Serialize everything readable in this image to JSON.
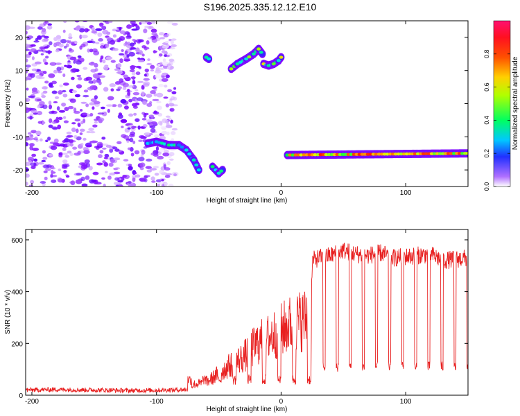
{
  "title": "S196.2025.335.12.12.E10",
  "chart_data": [
    {
      "type": "heatmap",
      "xlabel": "Height of straight line (km)",
      "ylabel": "Frequency (Hz)",
      "xlim": [
        -205,
        150
      ],
      "ylim": [
        -25,
        25
      ],
      "xticks": [
        -200,
        -100,
        0,
        100
      ],
      "yticks": [
        -20,
        -10,
        0,
        10,
        20
      ],
      "colorbar": {
        "label": "Normalized spectral amplitude",
        "range": [
          0,
          1
        ],
        "ticks": [
          0.0,
          0.2,
          0.4,
          0.6,
          0.8
        ],
        "tick_labels": [
          "0.0",
          "0.2",
          "0.4",
          "0.6",
          "0.8"
        ],
        "colors": [
          "#ffffff",
          "#7a00ff",
          "#2030ff",
          "#00e0ff",
          "#00ff40",
          "#e0ff00",
          "#ffa000",
          "#ff2000",
          "#ff1060"
        ]
      },
      "features": [
        {
          "name": "noise-region",
          "x": [
            -205,
            -85
          ],
          "y": [
            -25,
            25
          ],
          "amplitude": 0.1
        },
        {
          "name": "chirp-low-segment",
          "points": [
            [
              -107,
              -12
            ],
            [
              -100,
              -11.5
            ],
            [
              -90,
              -12.5
            ],
            [
              -82,
              -12.5
            ],
            [
              -76,
              -14
            ],
            [
              -70,
              -17
            ],
            [
              -66,
              -20
            ]
          ],
          "amplitude": 0.5
        },
        {
          "name": "burst-high-1",
          "points": [
            [
              -60,
              14
            ],
            [
              -58,
              13.5
            ]
          ],
          "amplitude": 0.6
        },
        {
          "name": "burst-low-2",
          "points": [
            [
              -55,
              -19
            ],
            [
              -50,
              -21
            ],
            [
              -47,
              -20
            ]
          ],
          "amplitude": 0.5
        },
        {
          "name": "chirp-high-segment",
          "points": [
            [
              -40,
              10.5
            ],
            [
              -35,
              12
            ],
            [
              -28,
              13.5
            ],
            [
              -22,
              15
            ],
            [
              -18,
              16.5
            ],
            [
              -15,
              15
            ]
          ],
          "amplitude": 0.6
        },
        {
          "name": "burst-high-3",
          "points": [
            [
              -14,
              12
            ],
            [
              -10,
              11.5
            ],
            [
              -6,
              12
            ],
            [
              -2,
              13
            ],
            [
              0,
              14
            ]
          ],
          "amplitude": 0.7
        },
        {
          "name": "steady-tone",
          "points": [
            [
              5,
              -15.5
            ],
            [
              150,
              -15
            ]
          ],
          "amplitude": 0.9
        }
      ]
    },
    {
      "type": "line",
      "xlabel": "Height of straight line (km)",
      "ylabel": "SNR (10 * v/v)",
      "xlim": [
        -205,
        150
      ],
      "ylim": [
        0,
        640
      ],
      "xticks": [
        -200,
        -100,
        0,
        100
      ],
      "yticks": [
        0,
        200,
        400,
        600
      ],
      "color": "#ff2020",
      "series": [
        {
          "name": "SNR",
          "x": [
            -205,
            -180,
            -150,
            -120,
            -90,
            -75,
            -70,
            -60,
            -50,
            -40,
            -30,
            -20,
            -10,
            0,
            10,
            20,
            25,
            30,
            40,
            50,
            60,
            70,
            80,
            90,
            100,
            110,
            120,
            130,
            140,
            150
          ],
          "values": [
            20,
            22,
            20,
            18,
            20,
            22,
            60,
            70,
            120,
            170,
            210,
            280,
            320,
            360,
            400,
            420,
            520,
            530,
            540,
            560,
            545,
            540,
            550,
            530,
            535,
            540,
            545,
            520,
            525,
            530
          ]
        }
      ]
    }
  ]
}
